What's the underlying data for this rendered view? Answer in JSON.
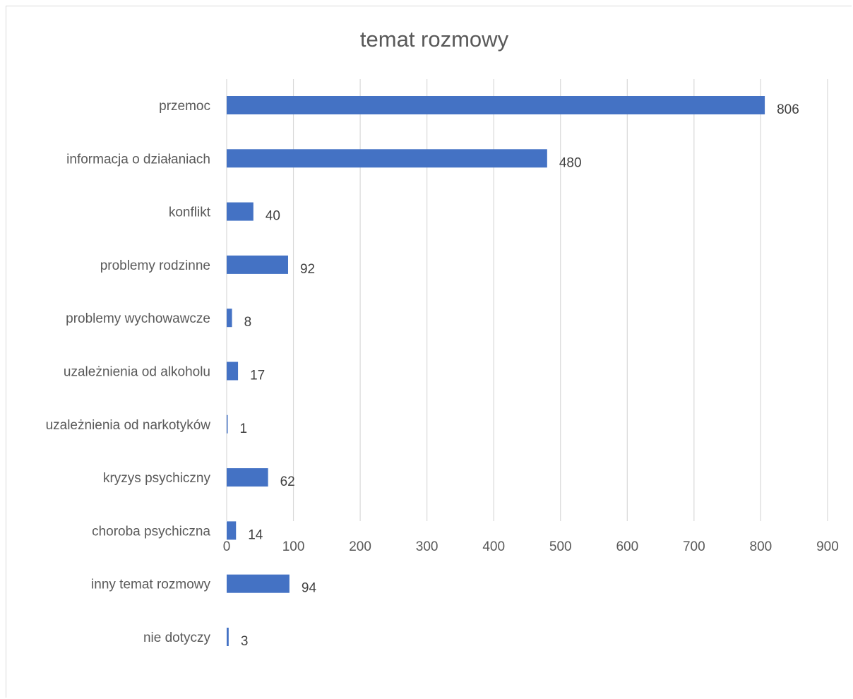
{
  "chart_data": {
    "type": "bar",
    "orientation": "horizontal",
    "title": "temat rozmowy",
    "categories": [
      "przemoc",
      "informacja o działaniach",
      "konflikt",
      "problemy rodzinne",
      "problemy wychowawcze",
      "uzależnienia od alkoholu",
      "uzależnienia od narkotyków",
      "kryzys psychiczny",
      "choroba psychiczna",
      "inny temat rozmowy",
      "nie dotyczy"
    ],
    "values": [
      806,
      480,
      40,
      92,
      8,
      17,
      1,
      62,
      14,
      94,
      3
    ],
    "xlim": [
      0,
      900
    ],
    "x_ticks": [
      "0",
      "100",
      "200",
      "300",
      "400",
      "500",
      "600",
      "700",
      "800",
      "900"
    ],
    "grid": true,
    "legend": "none",
    "bar_color": "#4472c4",
    "grid_color": "#d9d9d9"
  }
}
